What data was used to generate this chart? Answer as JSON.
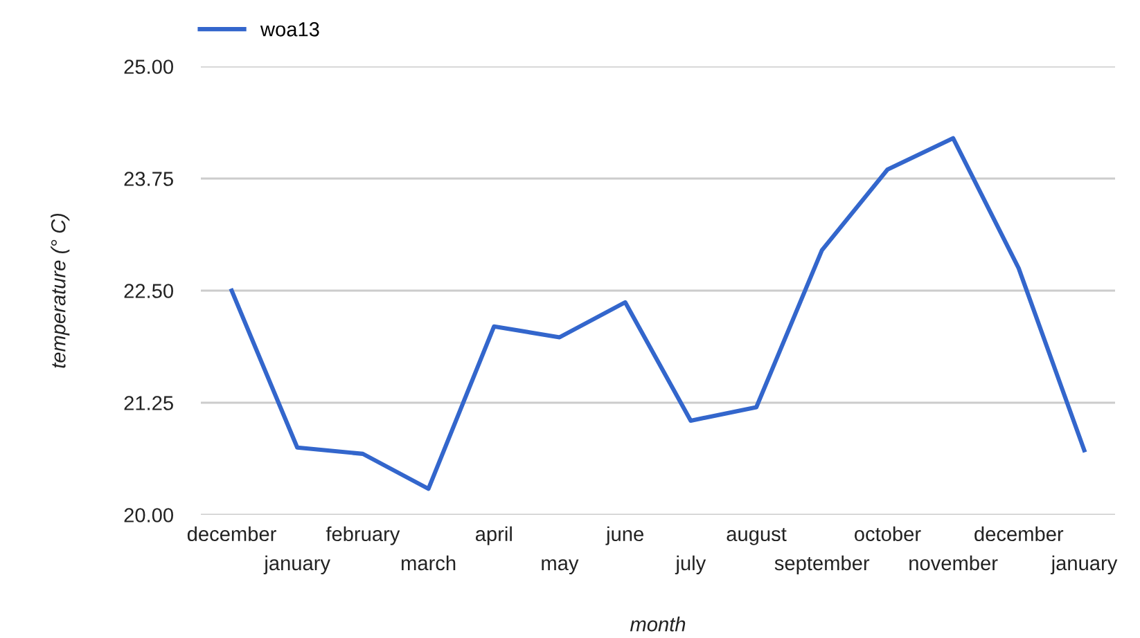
{
  "chart_data": {
    "type": "line",
    "xlabel": "month",
    "ylabel": "temperature (° C)",
    "categories": [
      "december",
      "january",
      "february",
      "march",
      "april",
      "may",
      "june",
      "july",
      "august",
      "september",
      "october",
      "november",
      "december",
      "january"
    ],
    "series": [
      {
        "name": "woa13",
        "color": "#3366cc",
        "values": [
          22.5,
          20.75,
          20.68,
          20.29,
          22.1,
          21.98,
          22.37,
          21.05,
          21.2,
          22.95,
          23.85,
          24.2,
          22.75,
          20.72
        ]
      }
    ],
    "ylim": [
      20,
      25
    ],
    "yticks": [
      {
        "value": 20,
        "label": "20.00"
      },
      {
        "value": 21.25,
        "label": "21.25"
      },
      {
        "value": 22.5,
        "label": "22.50"
      },
      {
        "value": 23.75,
        "label": "23.75"
      },
      {
        "value": 25,
        "label": "25.00"
      }
    ],
    "grid": "y",
    "legend": "top left",
    "marker": "none",
    "line_style": "solid"
  }
}
